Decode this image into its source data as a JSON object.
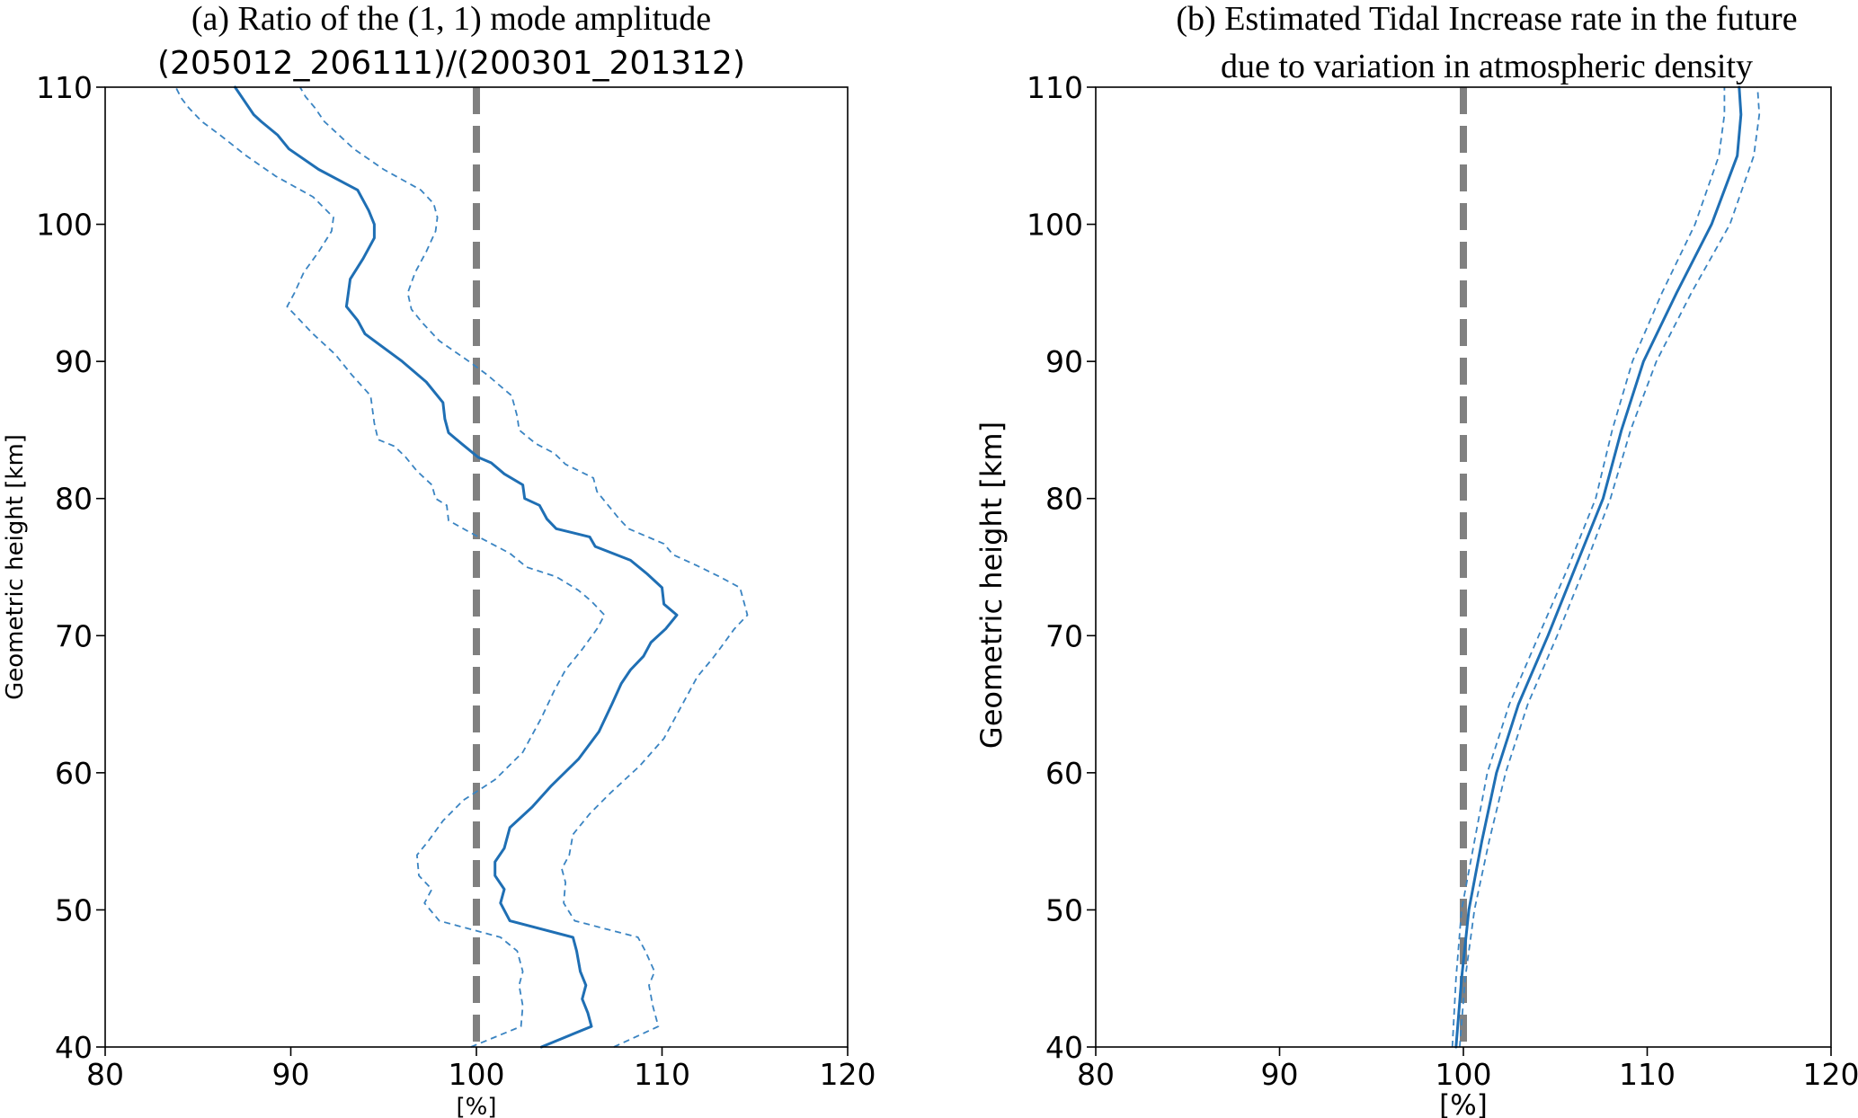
{
  "colors": {
    "series": "#1f6fb4",
    "bounds": "#3a84c2",
    "reference": "#808080",
    "axes": "#000000"
  },
  "chart_data": [
    {
      "type": "line",
      "title_line1": "(a) Ratio of the (1, 1) mode amplitude",
      "title_line2": "(205012_206111)/(200301_201312)",
      "xlabel": "[%]",
      "ylabel": "Geometric height [km]",
      "xlim": [
        80,
        120
      ],
      "ylim": [
        40,
        110
      ],
      "xticks": [
        "80",
        "90",
        "100",
        "110",
        "120"
      ],
      "yticks": [
        "40",
        "50",
        "60",
        "70",
        "80",
        "90",
        "100",
        "110"
      ],
      "reference_x": 100,
      "grid": false,
      "series": [
        {
          "role": "central",
          "points": [
            [
              103.5,
              40
            ],
            [
              106.2,
              41.5
            ],
            [
              106,
              42.5
            ],
            [
              105.7,
              43.5
            ],
            [
              105.9,
              44.5
            ],
            [
              105.6,
              45.5
            ],
            [
              105.4,
              47
            ],
            [
              105.2,
              48
            ],
            [
              101.8,
              49.2
            ],
            [
              101.3,
              50.5
            ],
            [
              101.5,
              51.5
            ],
            [
              101,
              52.5
            ],
            [
              101,
              53.5
            ],
            [
              101.5,
              54.5
            ],
            [
              101.8,
              56
            ],
            [
              103,
              57.5
            ],
            [
              104,
              59
            ],
            [
              105.5,
              61
            ],
            [
              106.6,
              63
            ],
            [
              107.3,
              65
            ],
            [
              107.8,
              66.5
            ],
            [
              108.3,
              67.5
            ],
            [
              109,
              68.5
            ],
            [
              109.4,
              69.5
            ],
            [
              110.2,
              70.5
            ],
            [
              110.8,
              71.5
            ],
            [
              110.1,
              72.3
            ],
            [
              110,
              73.5
            ],
            [
              109.2,
              74.5
            ],
            [
              108.3,
              75.5
            ],
            [
              106.4,
              76.5
            ],
            [
              106.1,
              77.2
            ],
            [
              104.3,
              77.8
            ],
            [
              103.8,
              78.5
            ],
            [
              103.4,
              79.5
            ],
            [
              102.6,
              80
            ],
            [
              102.5,
              81
            ],
            [
              101.5,
              81.8
            ],
            [
              100.8,
              82.6
            ],
            [
              100.1,
              83
            ],
            [
              99.2,
              84
            ],
            [
              98.5,
              84.8
            ],
            [
              98.3,
              85.8
            ],
            [
              98.2,
              87
            ],
            [
              97.3,
              88.5
            ],
            [
              96,
              90
            ],
            [
              94,
              92
            ],
            [
              93.6,
              93
            ],
            [
              93,
              94
            ],
            [
              93.1,
              95
            ],
            [
              93.2,
              96
            ],
            [
              93.9,
              97.5
            ],
            [
              94.5,
              99
            ],
            [
              94.5,
              100
            ],
            [
              94.2,
              101
            ],
            [
              93.6,
              102.5
            ],
            [
              91.5,
              104
            ],
            [
              89.9,
              105.5
            ],
            [
              89.3,
              106.5
            ],
            [
              88.4,
              107.5
            ],
            [
              88,
              108
            ],
            [
              87.5,
              109
            ],
            [
              87,
              110
            ]
          ]
        },
        {
          "role": "lower-bound",
          "points": [
            [
              99.7,
              40
            ],
            [
              102.4,
              41.5
            ],
            [
              102.5,
              43
            ],
            [
              102.3,
              44.5
            ],
            [
              102.5,
              45.5
            ],
            [
              102.2,
              47
            ],
            [
              101.3,
              48
            ],
            [
              98,
              49.2
            ],
            [
              97.2,
              50.5
            ],
            [
              97.6,
              51.5
            ],
            [
              96.9,
              52.5
            ],
            [
              96.8,
              54
            ],
            [
              97.4,
              55
            ],
            [
              98.2,
              56.5
            ],
            [
              99.3,
              58
            ],
            [
              101,
              59.5
            ],
            [
              102.5,
              61.5
            ],
            [
              103.5,
              64
            ],
            [
              104.2,
              66
            ],
            [
              104.8,
              67.5
            ],
            [
              105.7,
              69
            ],
            [
              106.5,
              70.5
            ],
            [
              106.9,
              71.5
            ],
            [
              106.2,
              72.5
            ],
            [
              105.5,
              73.3
            ],
            [
              104.3,
              74.3
            ],
            [
              102.7,
              75
            ],
            [
              101.8,
              76
            ],
            [
              99.7,
              77.5
            ],
            [
              98.5,
              78.4
            ],
            [
              98.4,
              79.5
            ],
            [
              97.8,
              80
            ],
            [
              97.6,
              81
            ],
            [
              96.8,
              82
            ],
            [
              96.2,
              83
            ],
            [
              95.6,
              83.8
            ],
            [
              94.7,
              84.3
            ],
            [
              94.5,
              85.5
            ],
            [
              94.3,
              87.5
            ],
            [
              93.3,
              89
            ],
            [
              92.4,
              90.5
            ],
            [
              91.2,
              92
            ],
            [
              90.5,
              93
            ],
            [
              89.8,
              94
            ],
            [
              90.2,
              95
            ],
            [
              90.7,
              96.5
            ],
            [
              91.5,
              98
            ],
            [
              92.2,
              99.5
            ],
            [
              92.3,
              100.5
            ],
            [
              91.2,
              102
            ],
            [
              89.2,
              103.5
            ],
            [
              87.6,
              105
            ],
            [
              86.2,
              106.5
            ],
            [
              85.2,
              107.5
            ],
            [
              84.5,
              108.5
            ],
            [
              84.1,
              109.2
            ],
            [
              83.8,
              110
            ]
          ]
        },
        {
          "role": "upper-bound",
          "points": [
            [
              107.4,
              40
            ],
            [
              109.8,
              41.5
            ],
            [
              109.5,
              43
            ],
            [
              109.3,
              44.5
            ],
            [
              109.6,
              45.5
            ],
            [
              109.1,
              47
            ],
            [
              108.7,
              48
            ],
            [
              105.3,
              49.2
            ],
            [
              104.7,
              50.5
            ],
            [
              104.8,
              52
            ],
            [
              104.6,
              53
            ],
            [
              105,
              54
            ],
            [
              105.2,
              55.5
            ],
            [
              106.1,
              57
            ],
            [
              107.2,
              58.5
            ],
            [
              108.8,
              60.5
            ],
            [
              110.1,
              62.5
            ],
            [
              110.9,
              64.5
            ],
            [
              111.5,
              66
            ],
            [
              111.9,
              67
            ],
            [
              112.7,
              68.3
            ],
            [
              113.2,
              69.2
            ],
            [
              113.9,
              70.5
            ],
            [
              114.6,
              71.5
            ],
            [
              114.4,
              72.5
            ],
            [
              114.2,
              73.5
            ],
            [
              113.1,
              74.3
            ],
            [
              111.9,
              75.1
            ],
            [
              110.6,
              75.9
            ],
            [
              110.1,
              76.7
            ],
            [
              108.2,
              77.8
            ],
            [
              107.7,
              78.5
            ],
            [
              107.1,
              79.5
            ],
            [
              106.5,
              80.5
            ],
            [
              106.3,
              81.5
            ],
            [
              104.8,
              82.5
            ],
            [
              104.2,
              83.3
            ],
            [
              103.2,
              84
            ],
            [
              102.3,
              85
            ],
            [
              102.2,
              86
            ],
            [
              101.9,
              87.5
            ],
            [
              100.6,
              89
            ],
            [
              99.6,
              90
            ],
            [
              98,
              91.5
            ],
            [
              97.1,
              92.8
            ],
            [
              96.5,
              93.8
            ],
            [
              96.3,
              95
            ],
            [
              96.7,
              96.5
            ],
            [
              97.3,
              98
            ],
            [
              97.8,
              99.5
            ],
            [
              97.9,
              100.5
            ],
            [
              97.7,
              101.5
            ],
            [
              97,
              102.5
            ],
            [
              95,
              104
            ],
            [
              93.4,
              105.5
            ],
            [
              92.6,
              106.5
            ],
            [
              91.8,
              107.5
            ],
            [
              91.3,
              108.5
            ],
            [
              90.8,
              109.3
            ],
            [
              90.5,
              110
            ]
          ]
        }
      ]
    },
    {
      "type": "line",
      "title_line1": "(b) Estimated Tidal Increase rate in the future",
      "title_line2": "due to variation in atmospheric density",
      "xlabel": "[%]",
      "ylabel": "Geometric height [km]",
      "xlim": [
        80,
        120
      ],
      "ylim": [
        40,
        110
      ],
      "xticks": [
        "80",
        "90",
        "100",
        "110",
        "120"
      ],
      "yticks": [
        "40",
        "50",
        "60",
        "70",
        "80",
        "90",
        "100",
        "110"
      ],
      "reference_x": 100,
      "grid": false,
      "series": [
        {
          "role": "central",
          "points": [
            [
              99.6,
              40
            ],
            [
              99.9,
              45
            ],
            [
              100.3,
              50
            ],
            [
              101,
              55
            ],
            [
              101.8,
              60
            ],
            [
              103,
              65
            ],
            [
              104.6,
              70
            ],
            [
              106.1,
              75
            ],
            [
              107.6,
              80
            ],
            [
              108.6,
              85
            ],
            [
              109.8,
              90
            ],
            [
              111.6,
              95
            ],
            [
              113.5,
              100
            ],
            [
              114.9,
              105
            ],
            [
              115.1,
              108
            ],
            [
              115,
              110
            ]
          ]
        },
        {
          "role": "lower-bound",
          "points": [
            [
              99.4,
              40
            ],
            [
              99.6,
              45
            ],
            [
              99.9,
              50
            ],
            [
              100.6,
              55
            ],
            [
              101.3,
              60
            ],
            [
              102.5,
              65
            ],
            [
              104.1,
              70
            ],
            [
              105.7,
              75
            ],
            [
              107.2,
              80
            ],
            [
              108.1,
              85
            ],
            [
              109.2,
              90
            ],
            [
              110.8,
              95
            ],
            [
              112.6,
              100
            ],
            [
              113.9,
              105
            ],
            [
              114.2,
              108
            ],
            [
              114.2,
              110
            ]
          ]
        },
        {
          "role": "upper-bound",
          "points": [
            [
              99.8,
              40
            ],
            [
              100.1,
              45
            ],
            [
              100.6,
              50
            ],
            [
              101.4,
              55
            ],
            [
              102.3,
              60
            ],
            [
              103.5,
              65
            ],
            [
              105.1,
              70
            ],
            [
              106.6,
              75
            ],
            [
              108,
              80
            ],
            [
              109.1,
              85
            ],
            [
              110.5,
              90
            ],
            [
              112.4,
              95
            ],
            [
              114.5,
              100
            ],
            [
              115.8,
              105
            ],
            [
              116.1,
              108
            ],
            [
              116,
              110
            ]
          ]
        }
      ]
    }
  ]
}
